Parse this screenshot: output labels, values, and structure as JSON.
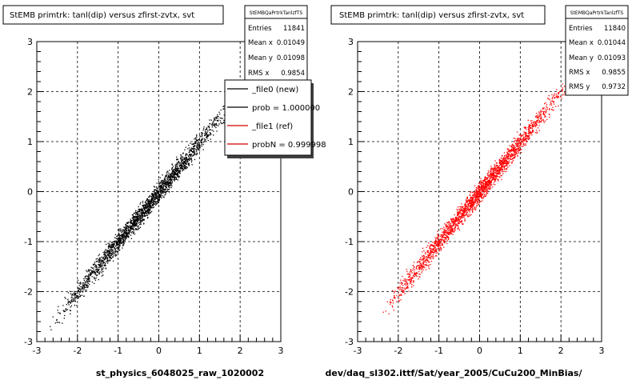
{
  "colors": {
    "left_series": "#000000",
    "right_series": "#ff0000",
    "red_line": "#cc0000"
  },
  "panels": [
    {
      "title": "StEMB primtrk: tanl(dip) versus zfirst-zvtx, svt",
      "stats": {
        "name": "StEMBQaPrtrkTanlzfTS",
        "rows": [
          {
            "label": "Entries",
            "value": "11841"
          },
          {
            "label": "Mean x",
            "value": "0.01049"
          },
          {
            "label": "Mean y",
            "value": "0.01098"
          },
          {
            "label": "RMS x",
            "value": "0.9854"
          }
        ]
      },
      "legend": [
        {
          "label": "_file0 (new)",
          "color": "#000000"
        },
        {
          "label": "prob = 1.000000",
          "color": "#000000"
        },
        {
          "label": "_file1 (ref)",
          "color": "#cc0000"
        },
        {
          "label": "probN = 0.999998",
          "color": "#cc0000"
        }
      ],
      "xlabel": "st_physics_6048025_raw_1020002"
    },
    {
      "title": "StEMB primtrk: tanl(dip) versus zfirst-zvtx, svt",
      "stats": {
        "name": "StEMBQaPrtrkTanlzfTS",
        "rows": [
          {
            "label": "Entries",
            "value": "11840"
          },
          {
            "label": "Mean x",
            "value": "0.01044"
          },
          {
            "label": "Mean y",
            "value": "0.01093"
          },
          {
            "label": "RMS x",
            "value": "0.9855"
          },
          {
            "label": "RMS y",
            "value": "0.9732"
          }
        ]
      },
      "xlabel": "dev/daq_sl302.ittf/Sat/year_2005/CuCu200_MinBias/"
    }
  ],
  "chart_data": [
    {
      "type": "scatter",
      "title": "StEMB primtrk: tanl(dip) versus zfirst-zvtx, svt",
      "xlabel": "st_physics_6048025_raw_1020002",
      "ylabel": "",
      "xlim": [
        -3,
        3
      ],
      "ylim": [
        -3,
        3
      ],
      "x_ticks": [
        "-3",
        "-2",
        "-1",
        "0",
        "1",
        "2",
        "3"
      ],
      "y_ticks": [
        "-3",
        "-2",
        "-1",
        "0",
        "1",
        "2",
        "3"
      ],
      "grid": true,
      "series": [
        {
          "name": "_file0 (new)",
          "color": "#000000",
          "x_range": [
            -2.7,
            1.95
          ],
          "slope": 1.0,
          "intercept": 0.0,
          "spread": 0.1
        }
      ],
      "legend_placement": "top-right"
    },
    {
      "type": "scatter",
      "title": "StEMB primtrk: tanl(dip) versus zfirst-zvtx, svt",
      "xlabel": "dev/daq_sl302.ittf/Sat/year_2005/CuCu200_MinBias/",
      "ylabel": "",
      "xlim": [
        -3,
        3
      ],
      "ylim": [
        -3,
        3
      ],
      "x_ticks": [
        "-3",
        "-2",
        "-1",
        "0",
        "1",
        "2",
        "3"
      ],
      "y_ticks": [
        "-3",
        "-2",
        "-1",
        "0",
        "1",
        "2",
        "3"
      ],
      "grid": true,
      "series": [
        {
          "name": "_file1 (ref)",
          "color": "#ff0000",
          "x_range": [
            -2.4,
            2.3
          ],
          "slope": 1.0,
          "intercept": 0.0,
          "spread": 0.1
        }
      ]
    }
  ]
}
